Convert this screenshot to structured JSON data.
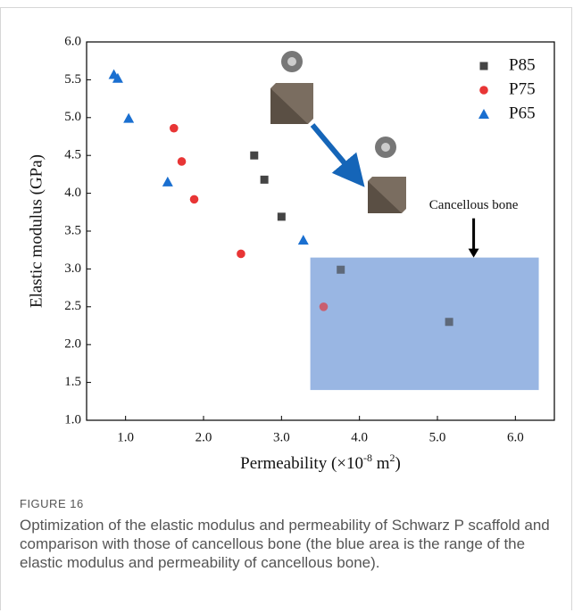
{
  "figure_label": "FIGURE 16",
  "caption": "Optimization of the elastic modulus and permeability of Schwarz P scaffold and comparison with those of cancellous bone (the blue area is the range of the elastic modulus and permeability of cancellous bone).",
  "chart_data": {
    "type": "scatter",
    "xlabel": [
      "Permeability (×10",
      "-8",
      " m",
      "2",
      ")"
    ],
    "ylabel": "Elastic modulus (GPa)",
    "xlim": [
      0.5,
      6.5
    ],
    "ylim": [
      1,
      6
    ],
    "xticks": [
      {
        "value": 1,
        "label": "1.0"
      },
      {
        "value": 2,
        "label": "2.0"
      },
      {
        "value": 3,
        "label": "3.0"
      },
      {
        "value": 4,
        "label": "4.0"
      },
      {
        "value": 5,
        "label": "5.0"
      },
      {
        "value": 6,
        "label": "6.0"
      }
    ],
    "yticks": [
      {
        "value": 1,
        "label": "1.0"
      },
      {
        "value": 1.5,
        "label": "1.5"
      },
      {
        "value": 2,
        "label": "2.0"
      },
      {
        "value": 2.5,
        "label": "2.5"
      },
      {
        "value": 3,
        "label": "3.0"
      },
      {
        "value": 3.5,
        "label": "3.5"
      },
      {
        "value": 4,
        "label": "4.0"
      },
      {
        "value": 4.5,
        "label": "4.5"
      },
      {
        "value": 5,
        "label": "5.0"
      },
      {
        "value": 5.5,
        "label": "5.5"
      },
      {
        "value": 6,
        "label": "6.0"
      }
    ],
    "region": {
      "label": "Cancellous bone",
      "xlim": [
        3.37,
        6.3
      ],
      "ylim": [
        1.4,
        3.15
      ],
      "color": "#8eaee0"
    },
    "legend": "upper right",
    "series": [
      {
        "name": "P85",
        "color": "#444444",
        "marker": "square",
        "x": [
          2.65,
          2.78,
          3.0,
          3.76,
          5.15
        ],
        "values": [
          4.5,
          4.18,
          3.69,
          2.99,
          2.3
        ]
      },
      {
        "name": "P75",
        "color": "#e83535",
        "marker": "circle",
        "x": [
          1.62,
          1.72,
          1.88,
          2.48,
          3.54
        ],
        "values": [
          4.86,
          4.42,
          3.92,
          3.2,
          2.5
        ]
      },
      {
        "name": "P65",
        "color": "#1a6fd0",
        "marker": "triangle",
        "x": [
          0.85,
          0.9,
          1.04,
          1.54,
          3.28
        ],
        "values": [
          5.57,
          5.52,
          4.99,
          4.15,
          3.38
        ]
      }
    ]
  }
}
